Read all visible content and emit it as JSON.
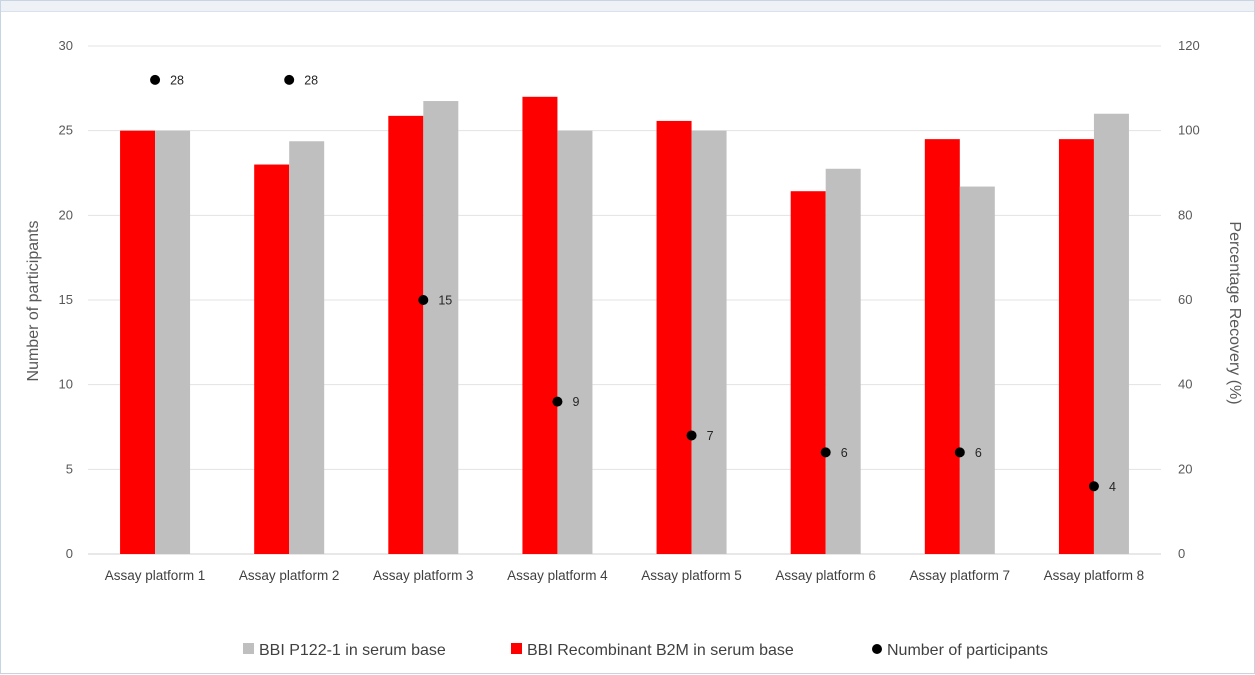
{
  "chart_data": {
    "type": "bar",
    "categories": [
      "Assay platform 1",
      "Assay platform 2",
      "Assay platform 3",
      "Assay platform 4",
      "Assay platform 5",
      "Assay platform 6",
      "Assay platform 7",
      "Assay platform 8"
    ],
    "series": [
      {
        "name": "BBI Recombinant B2M in serum base",
        "color": "#ff0000",
        "axis": "right",
        "values": [
          100,
          92,
          103.5,
          108,
          102.3,
          85.7,
          98,
          98
        ]
      },
      {
        "name": "BBI P122-1 in serum base",
        "color": "#bfbfbf",
        "axis": "right",
        "values": [
          100,
          97.5,
          107,
          100,
          100,
          91,
          86.8,
          104
        ]
      },
      {
        "name": "Number of participants",
        "color": "#000000",
        "axis": "left",
        "type": "scatter",
        "values": [
          28,
          28,
          15,
          9,
          7,
          6,
          6,
          4
        ]
      }
    ],
    "y_left": {
      "label": "Number of participants",
      "ylim": [
        0,
        30
      ],
      "ticks": [
        0,
        5,
        10,
        15,
        20,
        25,
        30
      ]
    },
    "y_right": {
      "label": "Percentage Recovery (%)",
      "ylim": [
        0,
        120
      ],
      "ticks": [
        0,
        20,
        40,
        60,
        80,
        100,
        120
      ]
    },
    "grid": true,
    "legend_position": "bottom",
    "legend_order": [
      "BBI P122-1 in serum base",
      "BBI Recombinant B2M in serum base",
      "Number of participants"
    ]
  }
}
